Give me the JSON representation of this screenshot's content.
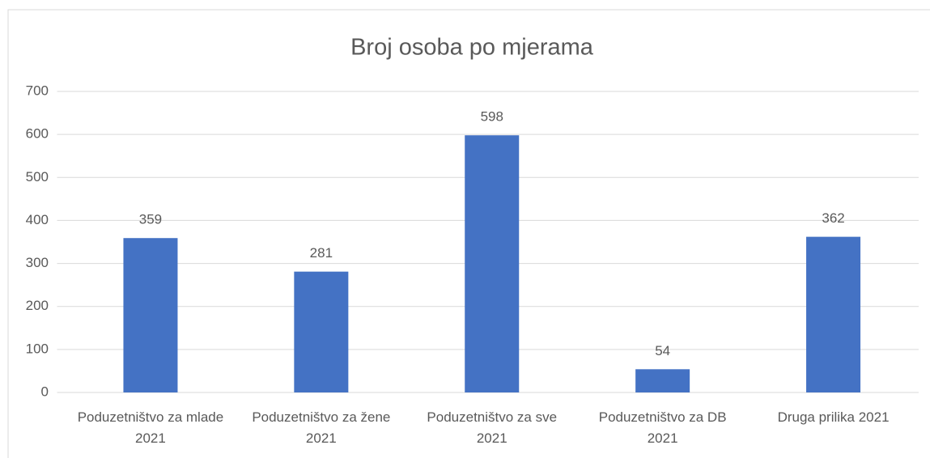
{
  "chart_data": {
    "type": "bar",
    "title": "Broj osoba po mjerama",
    "categories": [
      "Poduzetništvo za mlade 2021",
      "Poduzetništvo za žene 2021",
      "Poduzetništvo za sve 2021",
      "Poduzetništvo za DB 2021",
      "Druga prilika 2021"
    ],
    "values": [
      359,
      281,
      598,
      54,
      362
    ],
    "color": "#4472c4",
    "ylim": [
      0,
      700
    ],
    "yticks": [
      0,
      100,
      200,
      300,
      400,
      500,
      600,
      700
    ],
    "grid": true
  }
}
